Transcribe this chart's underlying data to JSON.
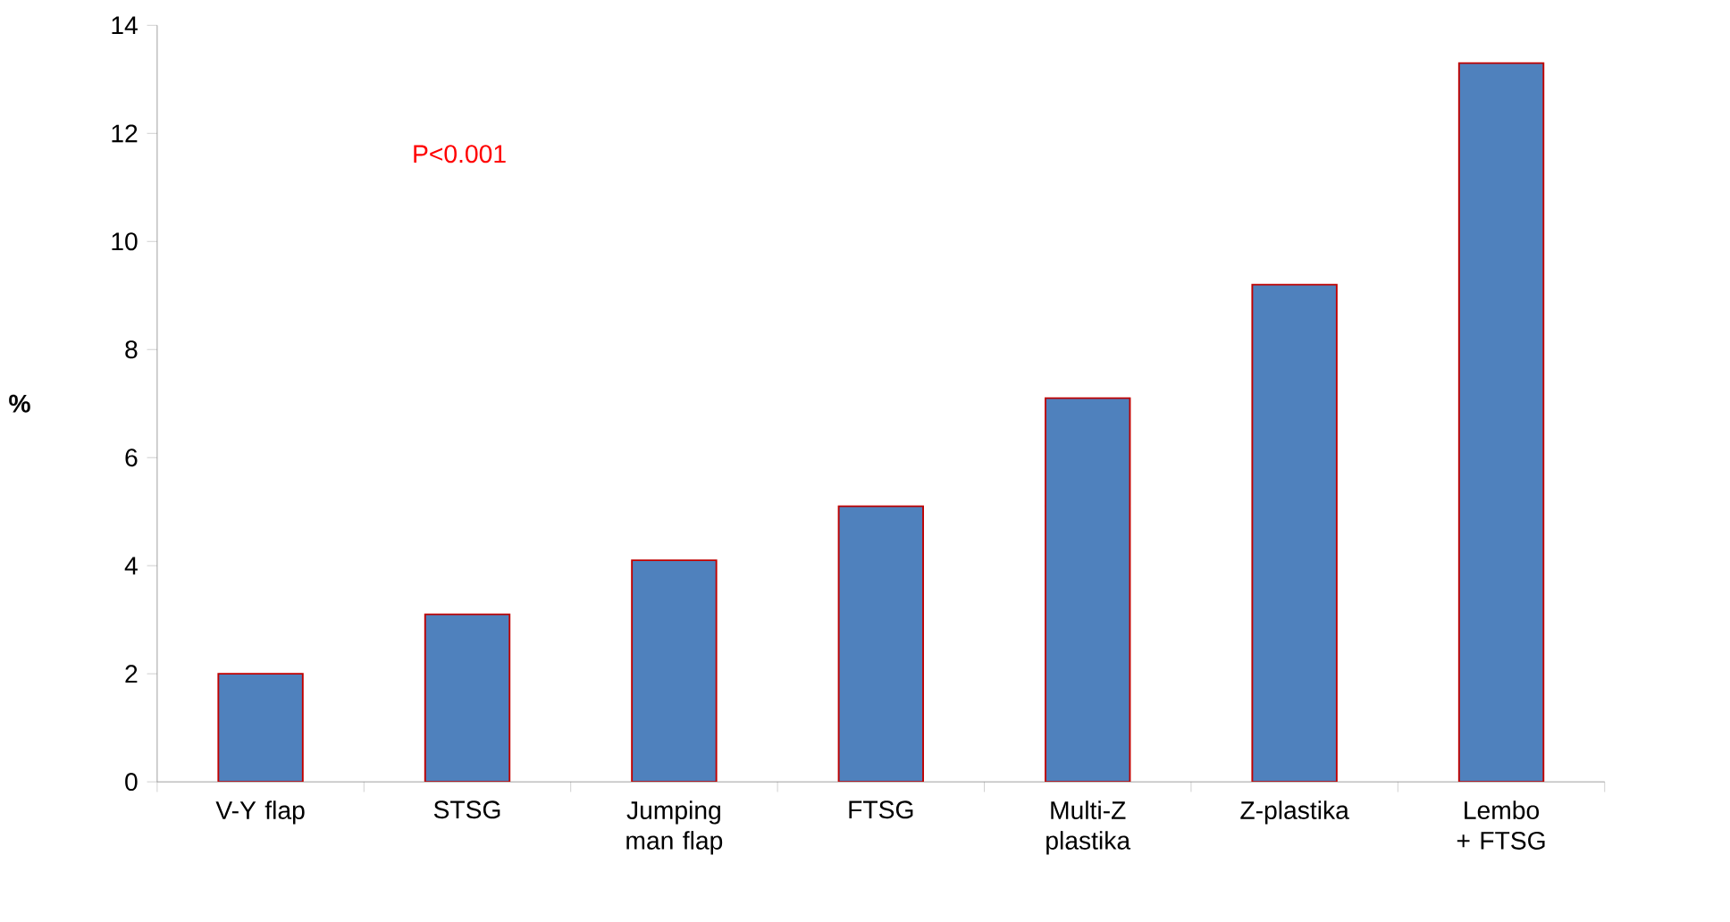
{
  "chart_data": {
    "type": "bar",
    "ylabel": "%",
    "categories": [
      "V-Y flap",
      "STSG",
      "Jumping man flap",
      "FTSG",
      "Multi-Z plastika",
      "Z-plastika",
      "Lembo + FTSG"
    ],
    "values": [
      2.0,
      3.1,
      4.1,
      5.1,
      7.1,
      9.2,
      13.3
    ],
    "color": "#4f81bd",
    "ylim": [
      0,
      14
    ],
    "yticks": [
      0,
      2,
      4,
      6,
      8,
      10,
      12,
      14
    ],
    "annotations": [
      "P<0.001"
    ]
  }
}
